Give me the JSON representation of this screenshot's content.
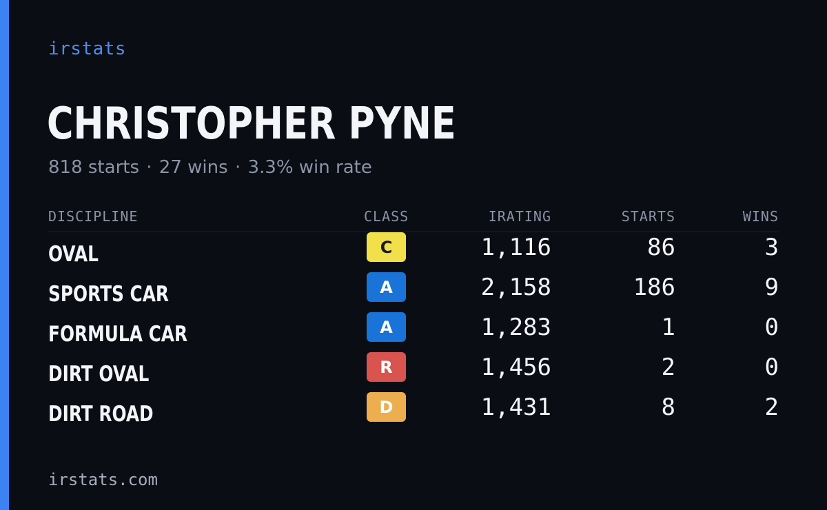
{
  "brand": "irstats",
  "driver": {
    "name": "CHRISTOPHER PYNE",
    "starts_text": "818 starts",
    "wins_text": "27 wins",
    "win_rate_text": "3.3% win rate",
    "separator": "·"
  },
  "table": {
    "headers": {
      "discipline": "DISCIPLINE",
      "class": "CLASS",
      "irating": "IRATING",
      "starts": "STARTS",
      "wins": "WINS"
    },
    "rows": [
      {
        "discipline": "OVAL",
        "class": "C",
        "class_color": "#f1e04a",
        "irating": "1,116",
        "starts": "86",
        "wins": "3"
      },
      {
        "discipline": "SPORTS CAR",
        "class": "A",
        "class_color": "#1a73d9",
        "irating": "2,158",
        "starts": "186",
        "wins": "9"
      },
      {
        "discipline": "FORMULA CAR",
        "class": "A",
        "class_color": "#1a73d9",
        "irating": "1,283",
        "starts": "1",
        "wins": "0"
      },
      {
        "discipline": "DIRT OVAL",
        "class": "R",
        "class_color": "#d9534f",
        "irating": "1,456",
        "starts": "2",
        "wins": "0"
      },
      {
        "discipline": "DIRT ROAD",
        "class": "D",
        "class_color": "#ecae4e",
        "irating": "1,431",
        "starts": "8",
        "wins": "2"
      }
    ]
  },
  "footer": {
    "url": "irstats.com"
  },
  "colors": {
    "accent": "#3d82f2",
    "background": "#0b0d14"
  }
}
